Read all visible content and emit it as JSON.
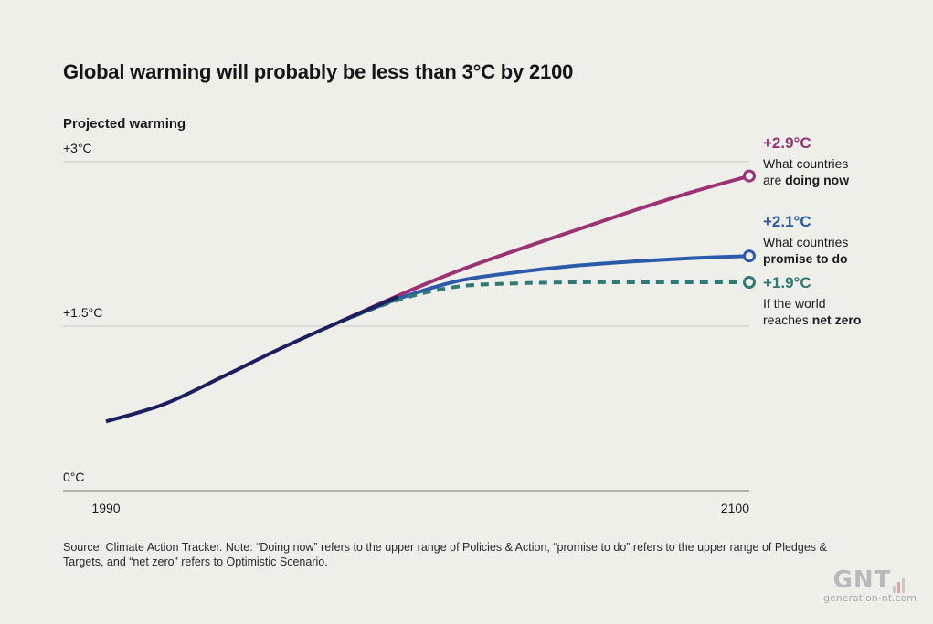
{
  "title": "Global warming will probably be less than 3°C by 2100",
  "subtitle": "Projected warming",
  "source": "Source: Climate Action Tracker. Note: “Doing now” refers to the upper range of Policies & Action, “promise to do” refers to the upper range of Pledges & Targets, and “net zero” refers to Optimistic Scenario.",
  "watermark": {
    "mark": "GNT",
    "site": "generation-nt.com"
  },
  "colors": {
    "historical": "#1a1f5e",
    "doing_now": "#9a3274",
    "promise": "#2b5ba8",
    "net_zero": "#2f7a72",
    "grid": "#c9c9c2",
    "axis_text": "#1b1b1b"
  },
  "chart_data": {
    "type": "line",
    "title": "Global warming will probably be less than 3°C by 2100",
    "ylabel": "Projected warming",
    "xlabel": "",
    "xlim": [
      1990,
      2100
    ],
    "ylim": [
      0,
      3
    ],
    "y_ticks": [
      {
        "value": 0,
        "label": "0°C"
      },
      {
        "value": 1.5,
        "label": "+1.5°C"
      },
      {
        "value": 3,
        "label": "+3°C"
      }
    ],
    "x_ticks": [
      {
        "value": 1990,
        "label": "1990"
      },
      {
        "value": 2100,
        "label": "2100"
      }
    ],
    "grid": true,
    "series": [
      {
        "key": "historical",
        "style": "solid",
        "x": [
          1990,
          2000,
          2010,
          2020,
          2030,
          2040
        ],
        "y": [
          0.63,
          0.79,
          1.04,
          1.3,
          1.54,
          1.77
        ]
      },
      {
        "key": "doing_now",
        "style": "solid",
        "x": [
          2030,
          2040,
          2050,
          2060,
          2070,
          2080,
          2090,
          2100
        ],
        "y": [
          1.54,
          1.78,
          2.0,
          2.19,
          2.37,
          2.55,
          2.72,
          2.87
        ],
        "end_value": "+2.9°C",
        "end_label_line1": "What countries",
        "end_label_line2_prefix": "are ",
        "end_label_line2_bold": "doing now"
      },
      {
        "key": "promise",
        "style": "solid",
        "x": [
          2030,
          2040,
          2050,
          2060,
          2070,
          2080,
          2090,
          2100
        ],
        "y": [
          1.54,
          1.75,
          1.91,
          1.99,
          2.05,
          2.09,
          2.12,
          2.14
        ],
        "end_value": "+2.1°C",
        "end_label_line1": "What countries",
        "end_label_line2_prefix": "",
        "end_label_line2_bold": "promise to do"
      },
      {
        "key": "net_zero",
        "style": "dashed",
        "x": [
          2030,
          2040,
          2050,
          2060,
          2070,
          2080,
          2090,
          2100
        ],
        "y": [
          1.54,
          1.74,
          1.86,
          1.89,
          1.9,
          1.9,
          1.9,
          1.9
        ],
        "end_value": "+1.9°C",
        "end_label_line1": "If the world",
        "end_label_line2_prefix": "reaches ",
        "end_label_line2_bold": "net zero"
      }
    ]
  }
}
